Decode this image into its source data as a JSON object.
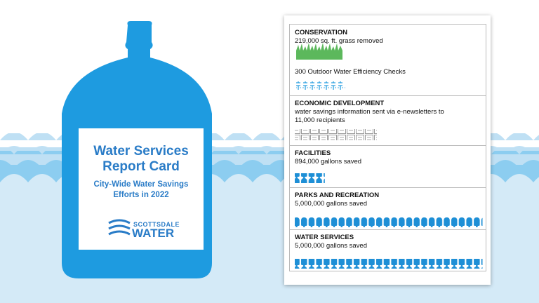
{
  "card": {
    "title": "Water Services Report Card",
    "subtitle": "City-Wide Water Savings Efforts in 2022",
    "logo_top": "SCOTTSDALE",
    "logo_bottom": "WATER"
  },
  "sections": [
    {
      "heading": "CONSERVATION",
      "lines": [
        "219,000 sq. ft. grass removed",
        "300 Outdoor Water Efficiency Checks"
      ]
    },
    {
      "heading": "ECONOMIC DEVELOPMENT",
      "lines": [
        "water savings information sent via e-newsletters to 11,000 recipients"
      ]
    },
    {
      "heading": "FACILITIES",
      "lines": [
        "894,000 gallons saved"
      ]
    },
    {
      "heading": "PARKS AND RECREATION",
      "lines": [
        "5,000,000 gallons saved"
      ]
    },
    {
      "heading": "WATER SERVICES",
      "lines": [
        "5,000,000 gallons saved"
      ]
    }
  ]
}
